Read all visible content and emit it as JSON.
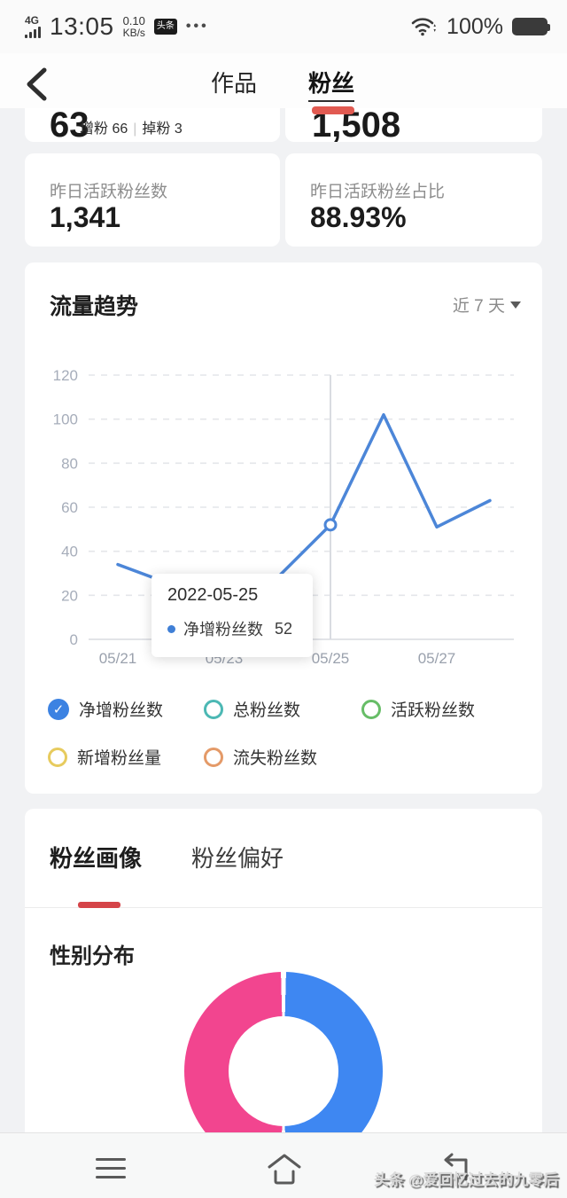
{
  "status_bar": {
    "network": "4G",
    "time": "13:05",
    "speed_value": "0.10",
    "speed_unit": "KB/s",
    "badge": "头条",
    "more": "•••",
    "battery_percent": "100%"
  },
  "nav": {
    "tab_works": "作品",
    "tab_fans": "粉丝",
    "accent_color": "#e15a51"
  },
  "summary": {
    "net_growth_value": "63",
    "net_growth_detail": "增粉 66",
    "net_growth_detail2": "掉粉 3",
    "total_fans_value": "1,508",
    "yesterday_active_label": "昨日活跃粉丝数",
    "yesterday_active_value": "1,341",
    "yesterday_ratio_label": "昨日活跃粉丝占比",
    "yesterday_ratio_value": "88.93%"
  },
  "trend": {
    "title": "流量趋势",
    "range_label": "近 7 天",
    "tooltip": {
      "date": "2022-05-25",
      "series": "净增粉丝数",
      "value": "52"
    },
    "legend": [
      {
        "label": "净增粉丝数",
        "color": "#3c82e2",
        "checked": true
      },
      {
        "label": "总粉丝数",
        "color": "#4cb8b4",
        "checked": false
      },
      {
        "label": "活跃粉丝数",
        "color": "#67bd67",
        "checked": false
      },
      {
        "label": "新增粉丝量",
        "color": "#e7cb5e",
        "checked": false
      },
      {
        "label": "流失粉丝数",
        "color": "#e49a68",
        "checked": false
      }
    ]
  },
  "chart_data": [
    {
      "type": "line",
      "title": "流量趋势",
      "x": [
        "05/21",
        "05/22",
        "05/23",
        "05/24",
        "05/25",
        "05/26",
        "05/27",
        "05/28"
      ],
      "x_tick_labels": [
        "05/21",
        "05/23",
        "05/25",
        "05/27"
      ],
      "series": [
        {
          "name": "净增粉丝数",
          "color": "#4c86d8",
          "values": [
            34,
            25,
            26,
            28,
            52,
            102,
            51,
            63
          ]
        }
      ],
      "ylim": [
        0,
        120
      ],
      "yticks": [
        0,
        20,
        40,
        60,
        80,
        100,
        120
      ],
      "grid": "horizontal-dashed",
      "legend_position": "bottom",
      "highlight": {
        "x": "05/25",
        "date": "2022-05-25",
        "series": "净增粉丝数",
        "value": 52
      }
    },
    {
      "type": "donut",
      "title": "性别分布",
      "slices": [
        {
          "color": "#3e87f2",
          "value": 50
        },
        {
          "color": "#f2458f",
          "value": 50
        }
      ]
    }
  ],
  "portrait": {
    "tab_active": "粉丝画像",
    "tab_idle": "粉丝偏好",
    "section_title": "性别分布",
    "accent_color": "#d54448"
  },
  "watermark": "头条 @爱回忆过去的九零后"
}
